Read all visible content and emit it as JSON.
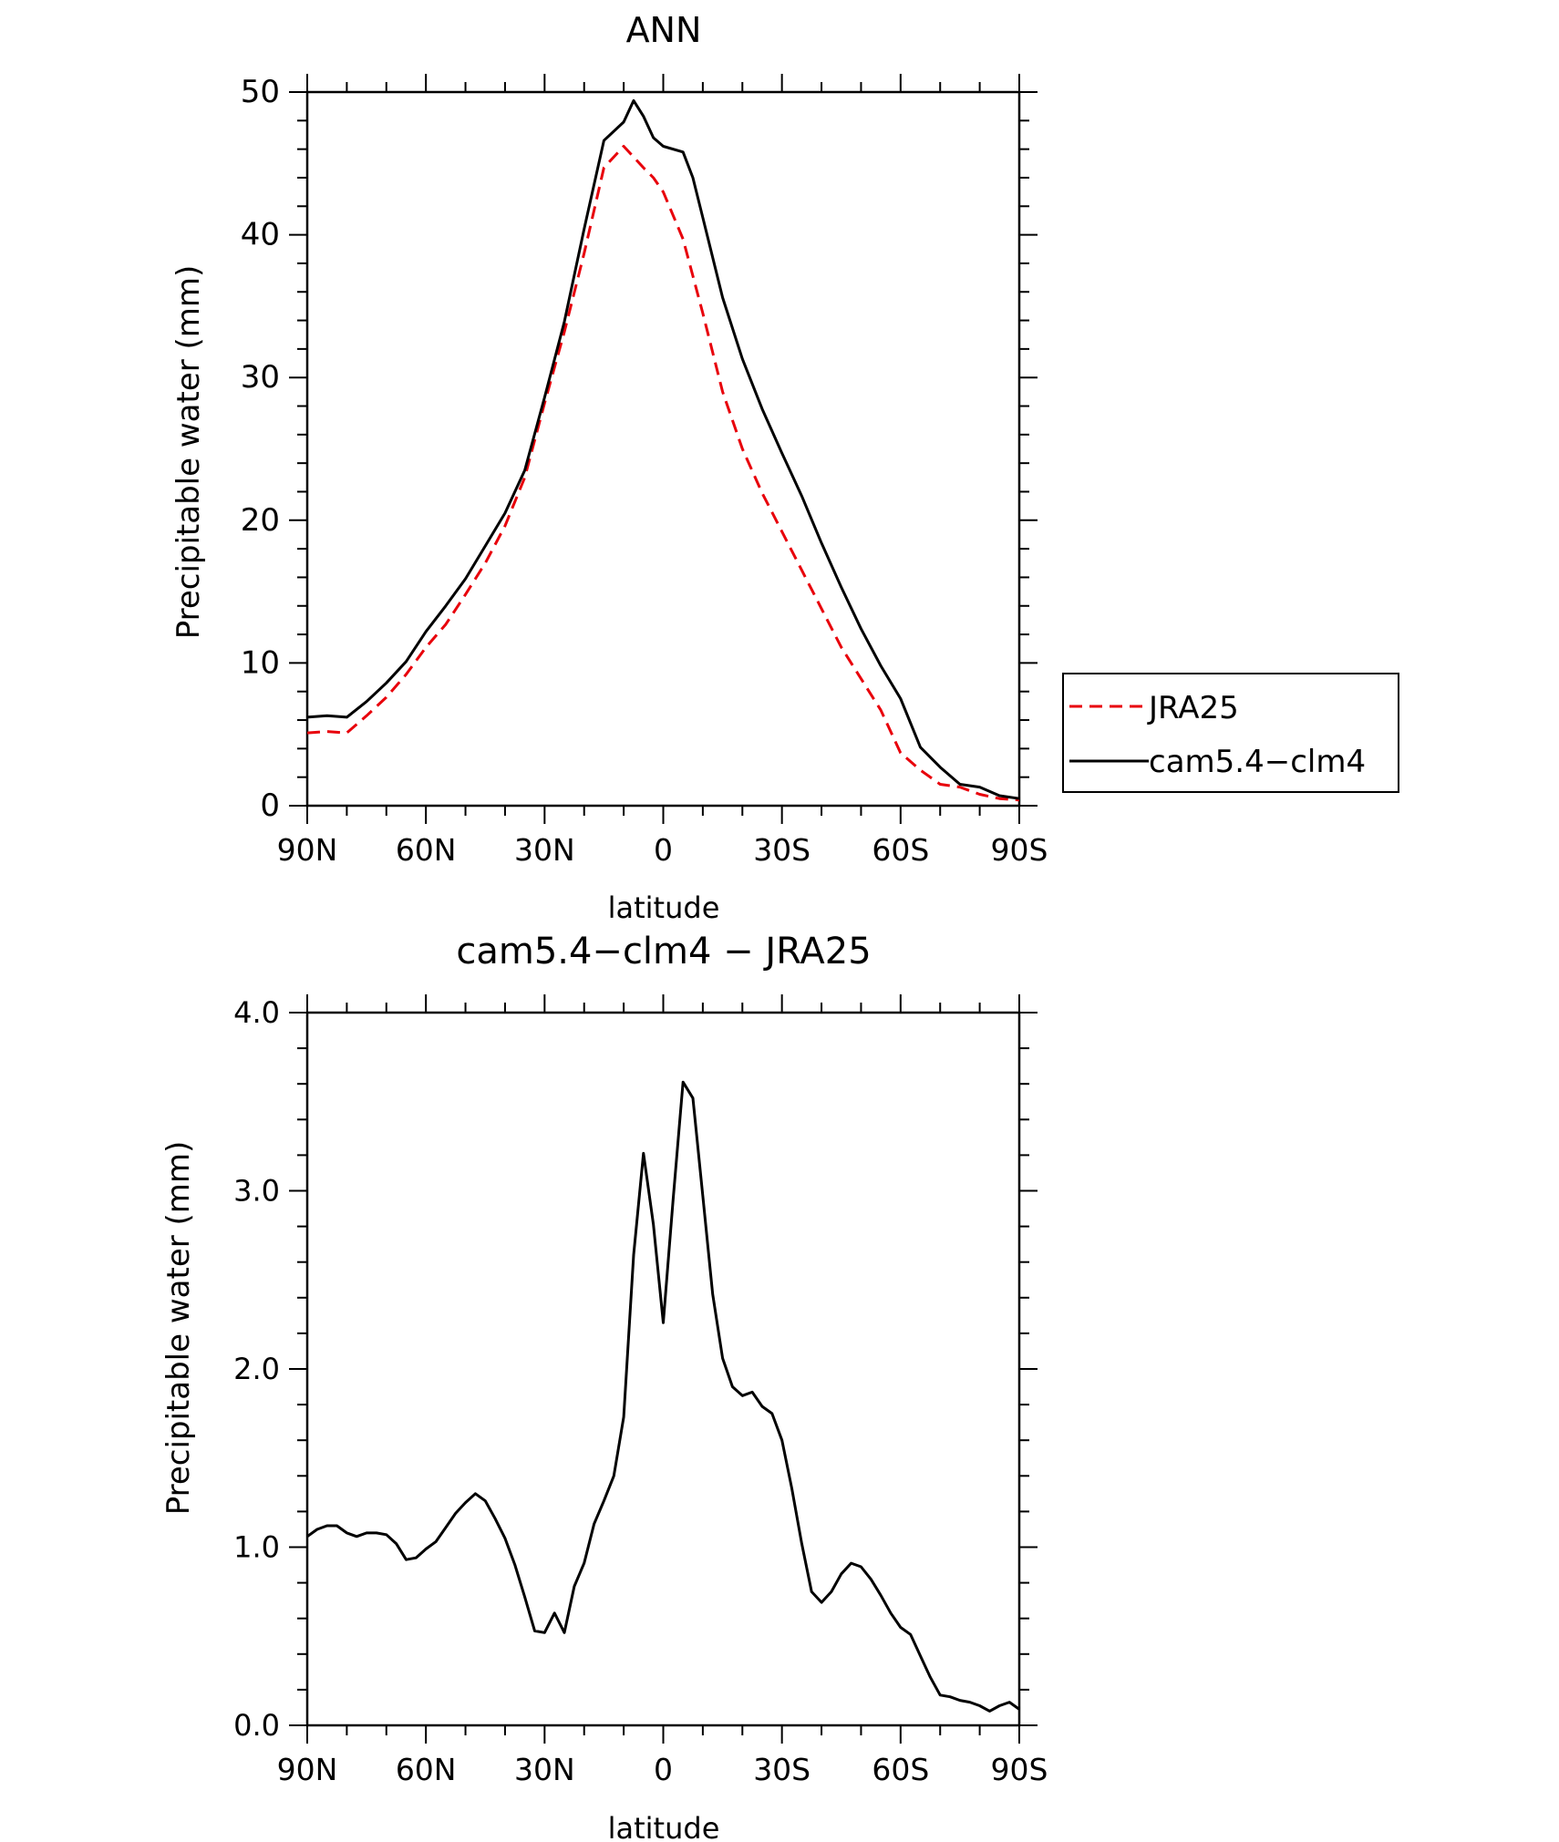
{
  "figure": {
    "top_title": "ANN",
    "bottom_title": "cam5.4−clm4 − JRA25"
  },
  "colors": {
    "model": "#000000",
    "obs": "#e8000b",
    "frame": "#000000",
    "background": "#ffffff"
  },
  "chart_data": [
    {
      "type": "line",
      "title": "ANN",
      "xlabel": "latitude",
      "ylabel": "Precipitable water (mm)",
      "x_direction": "north-to-south",
      "xlim": [
        90,
        -90
      ],
      "ylim": [
        0,
        50
      ],
      "xticks": [
        90,
        60,
        30,
        0,
        -30,
        -60,
        -90
      ],
      "xtick_labels": [
        "90N",
        "60N",
        "30N",
        "0",
        "30S",
        "60S",
        "90S"
      ],
      "yticks": [
        0,
        10,
        20,
        30,
        40,
        50
      ],
      "ytick_labels": [
        "0",
        "10",
        "20",
        "30",
        "40",
        "50"
      ],
      "legend": {
        "placement": "right",
        "entries": [
          "JRA25",
          "cam5.4−clm4"
        ]
      },
      "series": [
        {
          "name": "JRA25",
          "style": "dashed",
          "color": "#e8000b",
          "x": [
            90,
            85,
            80,
            75,
            70,
            65,
            60,
            55,
            50,
            45,
            40,
            35,
            30,
            25,
            20,
            15,
            10,
            5,
            2.5,
            0,
            -5,
            -10,
            -15,
            -20,
            -25,
            -30,
            -35,
            -40,
            -45,
            -50,
            -55,
            -60,
            -65,
            -70,
            -75,
            -80,
            -85,
            -90
          ],
          "values": [
            5.1,
            5.2,
            5.1,
            6.3,
            7.6,
            9.2,
            11.1,
            12.7,
            14.8,
            17.0,
            19.6,
            23.0,
            28.2,
            33.2,
            38.7,
            44.7,
            46.2,
            44.7,
            44.0,
            43.0,
            39.7,
            34.5,
            29.0,
            25.0,
            21.9,
            19.2,
            16.5,
            13.8,
            11.1,
            8.9,
            6.7,
            3.7,
            2.5,
            1.5,
            1.3,
            0.8,
            0.5,
            0.4
          ]
        },
        {
          "name": "cam5.4−clm4",
          "style": "solid",
          "color": "#000000",
          "x": [
            90,
            85,
            80,
            75,
            70,
            65,
            60,
            55,
            50,
            45,
            40,
            35,
            30,
            25,
            20,
            15,
            10,
            7.5,
            5,
            2.5,
            0,
            -5,
            -7.5,
            -10,
            -15,
            -20,
            -25,
            -30,
            -35,
            -40,
            -45,
            -50,
            -55,
            -60,
            -65,
            -70,
            -75,
            -80,
            -85,
            -90
          ],
          "values": [
            6.2,
            6.3,
            6.2,
            7.3,
            8.6,
            10.1,
            12.2,
            14.0,
            15.9,
            18.2,
            20.5,
            23.5,
            28.6,
            33.9,
            40.4,
            46.6,
            47.9,
            49.4,
            48.3,
            46.8,
            46.2,
            45.8,
            44.0,
            41.2,
            35.6,
            31.3,
            27.8,
            24.7,
            21.7,
            18.4,
            15.3,
            12.4,
            9.8,
            7.5,
            4.1,
            2.7,
            1.5,
            1.3,
            0.7,
            0.5
          ]
        }
      ]
    },
    {
      "type": "line",
      "title": "cam5.4−clm4 − JRA25",
      "xlabel": "latitude",
      "ylabel": "Precipitable water (mm)",
      "x_direction": "north-to-south",
      "xlim": [
        90,
        -90
      ],
      "ylim": [
        0,
        4
      ],
      "xticks": [
        90,
        60,
        30,
        0,
        -30,
        -60,
        -90
      ],
      "xtick_labels": [
        "90N",
        "60N",
        "30N",
        "0",
        "30S",
        "60S",
        "90S"
      ],
      "yticks": [
        0,
        1,
        2,
        3,
        4
      ],
      "ytick_labels": [
        "0.0",
        "1.0",
        "2.0",
        "3.0",
        "4.0"
      ],
      "series": [
        {
          "style": "solid",
          "color": "#000000",
          "x": [
            90,
            87.5,
            85,
            82.5,
            80,
            77.5,
            75,
            72.5,
            70,
            67.5,
            65,
            62.5,
            60,
            57.5,
            55,
            52.5,
            50,
            47.5,
            45,
            42.5,
            40,
            37.5,
            35,
            32.5,
            30,
            27.5,
            25,
            22.5,
            20,
            17.5,
            15,
            12.5,
            10,
            7.5,
            5,
            2.5,
            0,
            -2.5,
            -5,
            -7.5,
            -10,
            -12.5,
            -15,
            -17.5,
            -20,
            -22.5,
            -25,
            -27.5,
            -30,
            -32.5,
            -35,
            -37.5,
            -40,
            -42.5,
            -45,
            -47.5,
            -50,
            -52.5,
            -55,
            -57.5,
            -60,
            -62.5,
            -65,
            -67.5,
            -70,
            -72.5,
            -75,
            -77.5,
            -80,
            -82.5,
            -85,
            -87.5,
            -90
          ],
          "values": [
            1.06,
            1.1,
            1.12,
            1.12,
            1.08,
            1.06,
            1.08,
            1.08,
            1.07,
            1.02,
            0.93,
            0.94,
            0.99,
            1.03,
            1.11,
            1.19,
            1.25,
            1.3,
            1.26,
            1.16,
            1.05,
            0.9,
            0.72,
            0.53,
            0.52,
            0.63,
            0.52,
            0.78,
            0.91,
            1.13,
            1.26,
            1.4,
            1.73,
            2.64,
            3.21,
            2.81,
            2.26,
            2.95,
            3.61,
            3.52,
            2.97,
            2.42,
            2.06,
            1.9,
            1.85,
            1.87,
            1.79,
            1.75,
            1.6,
            1.33,
            1.02,
            0.75,
            0.69,
            0.75,
            0.85,
            0.91,
            0.89,
            0.82,
            0.73,
            0.63,
            0.55,
            0.51,
            0.39,
            0.27,
            0.17,
            0.16,
            0.14,
            0.13,
            0.11,
            0.08,
            0.11,
            0.13,
            0.09
          ]
        }
      ]
    }
  ]
}
